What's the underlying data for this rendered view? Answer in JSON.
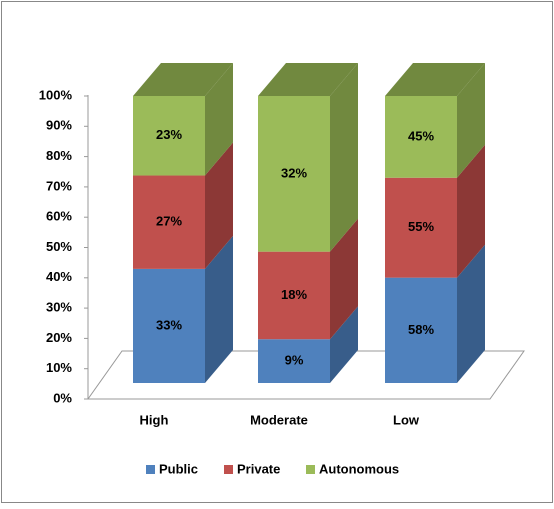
{
  "chart_data": {
    "type": "bar",
    "stacking": "percent",
    "categories": [
      "High",
      "Moderate",
      "Low"
    ],
    "series": [
      {
        "name": "Public",
        "color": "#4f81bd",
        "side_color": "#385d8a",
        "values": [
          33,
          9,
          58
        ],
        "value_labels": [
          "33%",
          "9%",
          "58%"
        ]
      },
      {
        "name": "Private",
        "color": "#c0504d",
        "side_color": "#8c3836",
        "values": [
          27,
          18,
          55
        ],
        "value_labels": [
          "27%",
          "18%",
          "55%"
        ]
      },
      {
        "name": "Autonomous",
        "color": "#9bbb59",
        "side_color": "#71893f",
        "values": [
          23,
          32,
          45
        ],
        "value_labels": [
          "23%",
          "32%",
          "45%"
        ]
      }
    ],
    "ylim": [
      0,
      100
    ],
    "yticks": [
      {
        "value": 0,
        "label": "0%"
      },
      {
        "value": 10,
        "label": "10%"
      },
      {
        "value": 20,
        "label": "20%"
      },
      {
        "value": 30,
        "label": "30%"
      },
      {
        "value": 40,
        "label": "40%"
      },
      {
        "value": 50,
        "label": "50%"
      },
      {
        "value": 60,
        "label": "60%"
      },
      {
        "value": 70,
        "label": "70%"
      },
      {
        "value": 80,
        "label": "80%"
      },
      {
        "value": 90,
        "label": "90%"
      },
      {
        "value": 100,
        "label": "100%"
      }
    ],
    "legend": "bottom"
  }
}
